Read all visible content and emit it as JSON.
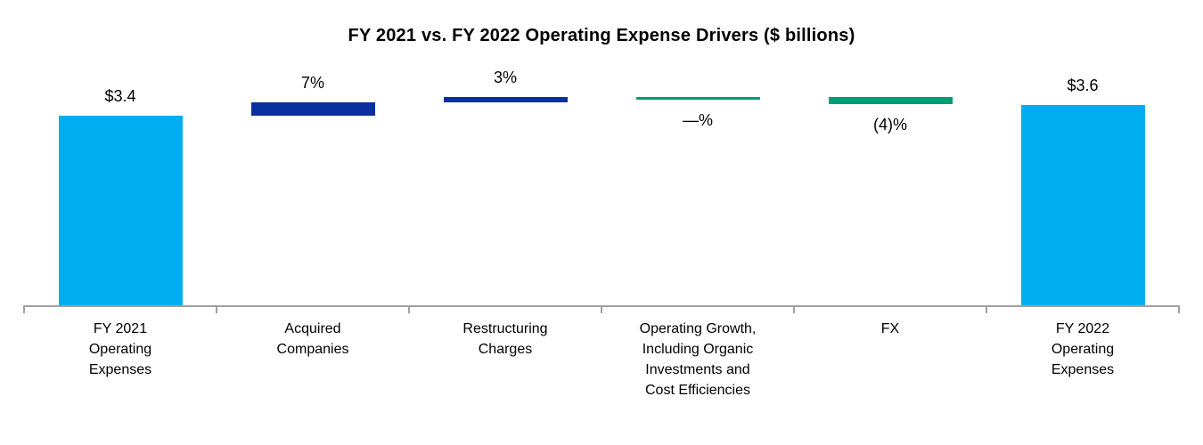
{
  "chart_data": {
    "type": "bar",
    "subtype": "waterfall",
    "title": "FY 2021 vs. FY 2022 Operating Expense Drivers ($ billions)",
    "unit": "$ billions",
    "start_value": 3.4,
    "end_value": 3.6,
    "ylim": [
      0,
      3.75
    ],
    "grid": "off",
    "legend": "none",
    "categories": [
      "FY 2021 Operating Expenses",
      "Acquired Companies",
      "Restructuring Charges",
      "Operating Growth, Including Organic Investments and Cost Efficiencies",
      "FX",
      "FY 2022 Operating Expenses"
    ],
    "bars": [
      {
        "kind": "total",
        "value": 3.4,
        "value_label": "$3.4",
        "label_position": "above",
        "color": "#00AEEF",
        "category_lines": [
          "FY 2021",
          "Operating",
          "Expenses"
        ]
      },
      {
        "kind": "delta",
        "pct_of_start": 7,
        "value_label": "7%",
        "label_position": "above",
        "color": "#0A2FA0",
        "category_lines": [
          "Acquired",
          "Companies"
        ]
      },
      {
        "kind": "delta",
        "pct_of_start": 3,
        "value_label": "3%",
        "label_position": "above",
        "color": "#0A2FA0",
        "category_lines": [
          "Restructuring",
          "Charges"
        ]
      },
      {
        "kind": "delta",
        "pct_of_start": 0,
        "value_label": "—%",
        "label_position": "below",
        "color": "#009B77",
        "category_lines": [
          "Operating Growth,",
          "Including Organic",
          "Investments and",
          "Cost Efficiencies"
        ]
      },
      {
        "kind": "delta",
        "pct_of_start": -4,
        "value_label": "(4)%",
        "label_position": "below",
        "color": "#009B77",
        "category_lines": [
          "FX"
        ]
      },
      {
        "kind": "total",
        "value": 3.6,
        "value_label": "$3.6",
        "label_position": "above",
        "color": "#00AEEF",
        "category_lines": [
          "FY 2022",
          "Operating",
          "Expenses"
        ]
      }
    ],
    "colors": {
      "total_bar": "#00AEEF",
      "positive_driver": "#0A2FA0",
      "negative_or_flat_driver": "#009B77",
      "axis": "#A0A0A0",
      "text": "#000000",
      "background": "#FFFFFF"
    }
  }
}
